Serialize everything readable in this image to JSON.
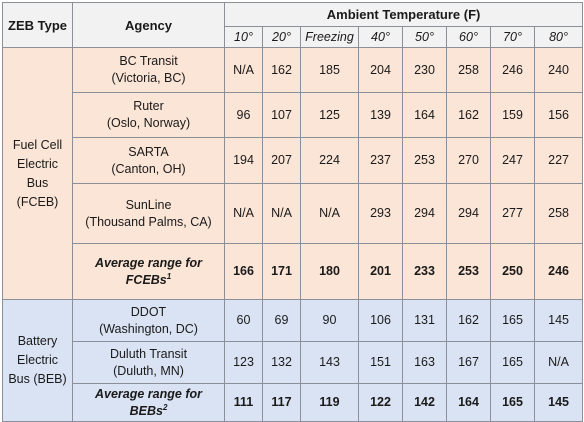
{
  "headers": {
    "zeb_type": "ZEB Type",
    "agency": "Agency",
    "ambient": "Ambient Temperature (F)",
    "temps": [
      "10°",
      "20°",
      "Freezing",
      "40°",
      "50°",
      "60°",
      "70°",
      "80°"
    ]
  },
  "groups": {
    "fceb": {
      "label_lines": [
        "Fuel Cell",
        "Electric",
        "Bus",
        "(FCEB)"
      ],
      "rows": [
        {
          "agency_lines": [
            "BC Transit",
            "(Victoria, BC)"
          ],
          "values": [
            "N/A",
            "162",
            "185",
            "204",
            "230",
            "258",
            "246",
            "240"
          ]
        },
        {
          "agency_lines": [
            "Ruter",
            "(Oslo, Norway)"
          ],
          "values": [
            "96",
            "107",
            "125",
            "139",
            "164",
            "162",
            "159",
            "156"
          ]
        },
        {
          "agency_lines": [
            "SARTA",
            "(Canton, OH)"
          ],
          "values": [
            "194",
            "207",
            "224",
            "237",
            "253",
            "270",
            "247",
            "227"
          ]
        },
        {
          "agency_lines": [
            "SunLine",
            "(Thousand Palms, CA)"
          ],
          "values": [
            "N/A",
            "N/A",
            "N/A",
            "293",
            "294",
            "294",
            "277",
            "258"
          ]
        }
      ],
      "average": {
        "lines": [
          "Average range for",
          "FCEBs"
        ],
        "sup": "1",
        "values": [
          "166",
          "171",
          "180",
          "201",
          "233",
          "253",
          "250",
          "246"
        ]
      }
    },
    "beb": {
      "label_lines": [
        "Battery",
        "Electric",
        "Bus (BEB)"
      ],
      "rows": [
        {
          "agency_lines": [
            "DDOT",
            "(Washington, DC)"
          ],
          "values": [
            "60",
            "69",
            "90",
            "106",
            "131",
            "162",
            "165",
            "145"
          ]
        },
        {
          "agency_lines": [
            "Duluth Transit",
            "(Duluth, MN)"
          ],
          "values": [
            "123",
            "132",
            "143",
            "151",
            "163",
            "167",
            "165",
            "N/A"
          ]
        }
      ],
      "average": {
        "lines": [
          "Average range for",
          "BEBs"
        ],
        "sup": "2",
        "values": [
          "111",
          "117",
          "119",
          "122",
          "142",
          "164",
          "165",
          "145"
        ]
      }
    }
  }
}
